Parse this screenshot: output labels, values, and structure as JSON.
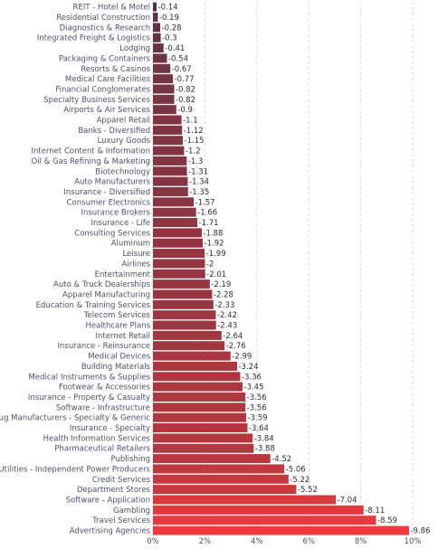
{
  "chart_data": {
    "type": "bar",
    "orientation": "horizontal",
    "title": "",
    "xlabel": "",
    "ylabel": "",
    "xlim": [
      0,
      10.5
    ],
    "x_ticks": [
      "0%",
      "2%",
      "4%",
      "6%",
      "8%",
      "10%"
    ],
    "x_tick_values": [
      0,
      2,
      4,
      6,
      8,
      10
    ],
    "grid": true,
    "legend": "none",
    "colors": {
      "low": "#3b3146",
      "high": "#f23a3c"
    },
    "categories": [
      "REIT - Hotel & Motel",
      "Residential Construction",
      "Diagnostics & Research",
      "Integrated Freight & Logistics",
      "Lodging",
      "Packaging & Containers",
      "Resorts & Casinos",
      "Medical Care Facilities",
      "Financial Conglomerates",
      "Specialty Business Services",
      "Airports & Air Services",
      "Apparel Retail",
      "Banks - Diversified",
      "Luxury Goods",
      "Internet Content & Information",
      "Oil & Gas Refining & Marketing",
      "Biotechnology",
      "Auto Manufacturers",
      "Insurance - Diversified",
      "Consumer Electronics",
      "Insurance Brokers",
      "Insurance - Life",
      "Consulting Services",
      "Aluminum",
      "Leisure",
      "Airlines",
      "Entertainment",
      "Auto & Truck Dealerships",
      "Apparel Manufacturing",
      "Education & Training Services",
      "Telecom Services",
      "Healthcare Plans",
      "Internet Retail",
      "Insurance - Reinsurance",
      "Medical Devices",
      "Building Materials",
      "Medical Instruments & Supplies",
      "Footwear & Accessories",
      "Insurance - Property & Casualty",
      "Software - Infrastructure",
      "Drug Manufacturers - Specialty & Generic",
      "Insurance - Specialty",
      "Health Information Services",
      "Pharmaceutical Retailers",
      "Publishing",
      "Utilities - Independent Power Producers",
      "Credit Services",
      "Department Stores",
      "Software - Application",
      "Gambling",
      "Travel Services",
      "Advertising Agencies"
    ],
    "values": [
      -0.14,
      -0.19,
      -0.28,
      -0.3,
      -0.41,
      -0.54,
      -0.67,
      -0.77,
      -0.82,
      -0.82,
      -0.9,
      -1.1,
      -1.12,
      -1.15,
      -1.2,
      -1.3,
      -1.31,
      -1.34,
      -1.35,
      -1.57,
      -1.66,
      -1.71,
      -1.88,
      -1.92,
      -1.99,
      -2,
      -2.01,
      -2.19,
      -2.28,
      -2.33,
      -2.42,
      -2.43,
      -2.64,
      -2.76,
      -2.99,
      -3.24,
      -3.36,
      -3.45,
      -3.56,
      -3.56,
      -3.59,
      -3.64,
      -3.84,
      -3.88,
      -4.52,
      -5.06,
      -5.22,
      -5.52,
      -7.04,
      -8.11,
      -8.59,
      -9.86
    ],
    "value_labels": [
      "-0.14",
      "-0.19",
      "-0.28",
      "-0.3",
      "-0.41",
      "-0.54",
      "-0.67",
      "-0.77",
      "-0.82",
      "-0.82",
      "-0.9",
      "-1.1",
      "-1.12",
      "-1.15",
      "-1.2",
      "-1.3",
      "-1.31",
      "-1.34",
      "-1.35",
      "-1.57",
      "-1.66",
      "-1.71",
      "-1.88",
      "-1.92",
      "-1.99",
      "-2",
      "-2.01",
      "-2.19",
      "-2.28",
      "-2.33",
      "-2.42",
      "-2.43",
      "-2.64",
      "-2.76",
      "-2.99",
      "-3.24",
      "-3.36",
      "-3.45",
      "-3.56",
      "-3.56",
      "-3.59",
      "-3.64",
      "-3.84",
      "-3.88",
      "-4.52",
      "-5.06",
      "-5.22",
      "-5.52",
      "-7.04",
      "-8.11",
      "-8.59",
      "-9.86"
    ]
  }
}
